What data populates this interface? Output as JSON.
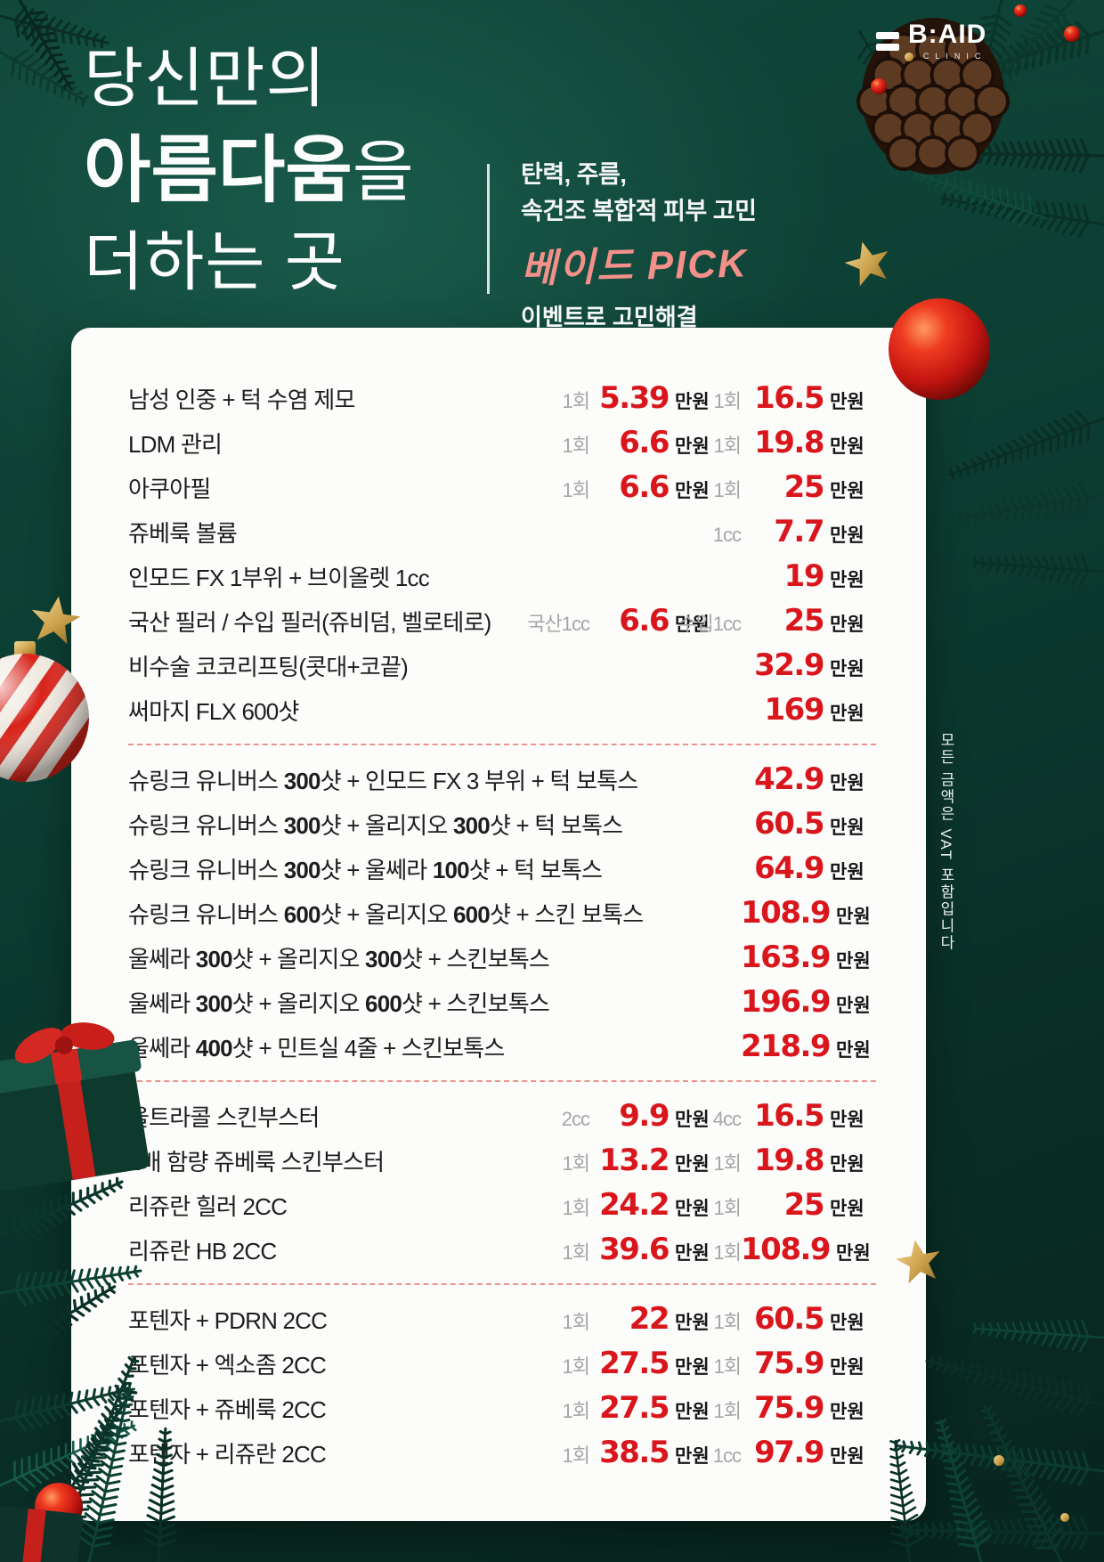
{
  "logo": {
    "name": "B:AID",
    "sub": "CLINIC"
  },
  "header": {
    "title_line1": "당신만의",
    "title_line2_bold": "아름다움",
    "title_line2_rest": "을",
    "title_line3": "더하는 곳",
    "tagline_line1": "탄력, 주름,",
    "tagline_line2": "속건조 복합적 피부 고민",
    "pick_label": "베이드 PICK",
    "tagline_line3": "이벤트로 고민해결"
  },
  "side_note": "모든 금액은 VAT 포함입니다",
  "colors": {
    "price_red": "#d9161c",
    "pick_pink": "#f4908a",
    "gold": "#cda24c",
    "background_green": "#0d4034",
    "card_white": "#fcfcfb",
    "separator_pink": "#e9958e"
  },
  "price_list": {
    "currency_label": "만원",
    "sections": [
      {
        "rows": [
          {
            "name": [
              {
                "t": "남성 인중 + 턱 수염 제모"
              }
            ],
            "p1": {
              "unit": "1회",
              "value": "5.39"
            },
            "p2": {
              "unit": "1회",
              "value": "16.5"
            }
          },
          {
            "name": [
              {
                "t": "LDM 관리"
              }
            ],
            "p1": {
              "unit": "1회",
              "value": "6.6"
            },
            "p2": {
              "unit": "1회",
              "value": "19.8"
            }
          },
          {
            "name": [
              {
                "t": "아쿠아필"
              }
            ],
            "p1": {
              "unit": "1회",
              "value": "6.6"
            },
            "p2": {
              "unit": "1회",
              "value": "25"
            }
          },
          {
            "name": [
              {
                "t": "쥬베룩 볼륨"
              }
            ],
            "p1": null,
            "p2": {
              "unit": "1cc",
              "value": "7.7"
            }
          },
          {
            "name": [
              {
                "t": "인모드 FX 1부위 + 브이올렛 1cc"
              }
            ],
            "p1": null,
            "p2": {
              "unit": "",
              "value": "19"
            }
          },
          {
            "name": [
              {
                "t": "국산 필러 / 수입 필러(쥬비덤, 벨로테로)"
              }
            ],
            "p1": {
              "unit": "국산1cc",
              "value": "6.6"
            },
            "p2": {
              "unit": "수입1cc",
              "value": "25"
            }
          },
          {
            "name": [
              {
                "t": "비수술 코코리프팅(콧대+코끝)"
              }
            ],
            "p1": null,
            "p2": {
              "unit": "",
              "value": "32.9"
            }
          },
          {
            "name": [
              {
                "t": "써마지 FLX 600샷"
              }
            ],
            "p1": null,
            "p2": {
              "unit": "",
              "value": "169"
            }
          }
        ]
      },
      {
        "rows": [
          {
            "name": [
              {
                "t": "슈링크 유니버스 "
              },
              {
                "t": "300",
                "b": true
              },
              {
                "t": "샷 + 인모드 FX 3 부위 + 턱 보톡스"
              }
            ],
            "p1": null,
            "p2": {
              "unit": "",
              "value": "42.9"
            }
          },
          {
            "name": [
              {
                "t": "슈링크 유니버스 "
              },
              {
                "t": "300",
                "b": true
              },
              {
                "t": "샷 + 올리지오 "
              },
              {
                "t": "300",
                "b": true
              },
              {
                "t": "샷 + 턱 보톡스"
              }
            ],
            "p1": null,
            "p2": {
              "unit": "",
              "value": "60.5"
            }
          },
          {
            "name": [
              {
                "t": "슈링크 유니버스 "
              },
              {
                "t": "300",
                "b": true
              },
              {
                "t": "샷 + 울쎄라 "
              },
              {
                "t": "100",
                "b": true
              },
              {
                "t": "샷 + 턱 보톡스"
              }
            ],
            "p1": null,
            "p2": {
              "unit": "",
              "value": "64.9"
            }
          },
          {
            "name": [
              {
                "t": "슈링크 유니버스 "
              },
              {
                "t": "600",
                "b": true
              },
              {
                "t": "샷 + 올리지오 "
              },
              {
                "t": "600",
                "b": true
              },
              {
                "t": "샷 + 스킨 보톡스"
              }
            ],
            "p1": null,
            "p2": {
              "unit": "",
              "value": "108.9"
            }
          },
          {
            "name": [
              {
                "t": "울쎄라 "
              },
              {
                "t": "300",
                "b": true
              },
              {
                "t": "샷 + 올리지오 "
              },
              {
                "t": "300",
                "b": true
              },
              {
                "t": "샷 + 스킨보톡스"
              }
            ],
            "p1": null,
            "p2": {
              "unit": "",
              "value": "163.9"
            }
          },
          {
            "name": [
              {
                "t": "울쎄라 "
              },
              {
                "t": "300",
                "b": true
              },
              {
                "t": "샷 + 올리지오 "
              },
              {
                "t": "600",
                "b": true
              },
              {
                "t": "샷 + 스킨보톡스"
              }
            ],
            "p1": null,
            "p2": {
              "unit": "",
              "value": "196.9"
            }
          },
          {
            "name": [
              {
                "t": "울쎄라 "
              },
              {
                "t": "400",
                "b": true
              },
              {
                "t": "샷 + 민트실 4줄 + 스킨보톡스"
              }
            ],
            "p1": null,
            "p2": {
              "unit": "",
              "value": "218.9"
            }
          }
        ]
      },
      {
        "rows": [
          {
            "name": [
              {
                "t": "울트라콜 스킨부스터"
              }
            ],
            "p1": {
              "unit": "2cc",
              "value": "9.9"
            },
            "p2": {
              "unit": "4cc",
              "value": "16.5"
            }
          },
          {
            "name": [
              {
                "t": "2배 함량 쥬베룩 스킨부스터"
              }
            ],
            "p1": {
              "unit": "1회",
              "value": "13.2"
            },
            "p2": {
              "unit": "1회",
              "value": "19.8"
            }
          },
          {
            "name": [
              {
                "t": "리쥬란 힐러 2CC"
              }
            ],
            "p1": {
              "unit": "1회",
              "value": "24.2"
            },
            "p2": {
              "unit": "1회",
              "value": "25"
            }
          },
          {
            "name": [
              {
                "t": "리쥬란 HB 2CC"
              }
            ],
            "p1": {
              "unit": "1회",
              "value": "39.6"
            },
            "p2": {
              "unit": "1회",
              "value": "108.9"
            }
          }
        ]
      },
      {
        "rows": [
          {
            "name": [
              {
                "t": "포텐자 + PDRN 2CC"
              }
            ],
            "p1": {
              "unit": "1회",
              "value": "22"
            },
            "p2": {
              "unit": "1회",
              "value": "60.5"
            }
          },
          {
            "name": [
              {
                "t": "포텐자 + 엑소좀 2CC"
              }
            ],
            "p1": {
              "unit": "1회",
              "value": "27.5"
            },
            "p2": {
              "unit": "1회",
              "value": "75.9"
            }
          },
          {
            "name": [
              {
                "t": "포텐자 + 쥬베룩 2CC"
              }
            ],
            "p1": {
              "unit": "1회",
              "value": "27.5"
            },
            "p2": {
              "unit": "1회",
              "value": "75.9"
            }
          },
          {
            "name": [
              {
                "t": "포텐자 + 리쥬란  2CC"
              }
            ],
            "p1": {
              "unit": "1회",
              "value": "38.5"
            },
            "p2": {
              "unit": "1cc",
              "value": "97.9"
            }
          }
        ]
      }
    ]
  }
}
